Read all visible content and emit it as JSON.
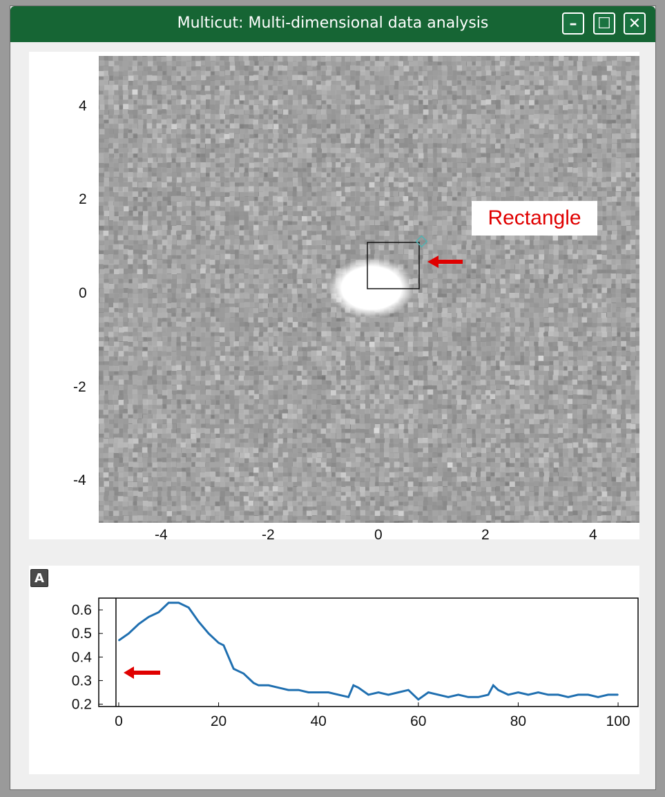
{
  "window": {
    "title": "Multicut: Multi-dimensional data analysis",
    "buttons": {
      "minimize": "–",
      "maximize": "☐",
      "close": "✕"
    }
  },
  "image_plot": {
    "x_ticks": [
      "-4",
      "-2",
      "0",
      "2",
      "4"
    ],
    "y_ticks": [
      "4",
      "2",
      "0",
      "-2",
      "-4"
    ],
    "annotation_label": "Rectangle",
    "colors": {
      "roi_handle": "#4fb3b3",
      "arrow": "#e00000"
    }
  },
  "separator": {
    "icon": "A"
  },
  "chart_data": {
    "type": "line",
    "x_ticks": [
      "0",
      "20",
      "40",
      "60",
      "80",
      "100"
    ],
    "y_ticks": [
      "0.6",
      "0.5",
      "0.4",
      "0.3",
      "0.2"
    ],
    "xlim": [
      -4,
      104
    ],
    "ylim": [
      0.19,
      0.65
    ],
    "series_color": "#1f6fb0",
    "cursor_x": 0,
    "x": [
      0,
      2,
      4,
      6,
      8,
      10,
      12,
      14,
      16,
      18,
      20,
      21,
      22,
      23,
      24,
      25,
      26,
      27,
      28,
      30,
      32,
      34,
      36,
      38,
      40,
      42,
      44,
      46,
      47,
      48,
      50,
      52,
      54,
      56,
      58,
      60,
      62,
      64,
      66,
      68,
      70,
      72,
      74,
      75,
      76,
      78,
      80,
      82,
      84,
      86,
      88,
      90,
      92,
      94,
      96,
      98,
      100
    ],
    "values": [
      0.47,
      0.5,
      0.54,
      0.57,
      0.59,
      0.63,
      0.63,
      0.61,
      0.55,
      0.5,
      0.46,
      0.45,
      0.4,
      0.35,
      0.34,
      0.33,
      0.31,
      0.29,
      0.28,
      0.28,
      0.27,
      0.26,
      0.26,
      0.25,
      0.25,
      0.25,
      0.24,
      0.23,
      0.28,
      0.27,
      0.24,
      0.25,
      0.24,
      0.25,
      0.26,
      0.22,
      0.25,
      0.24,
      0.23,
      0.24,
      0.23,
      0.23,
      0.24,
      0.28,
      0.26,
      0.24,
      0.25,
      0.24,
      0.25,
      0.24,
      0.24,
      0.23,
      0.24,
      0.24,
      0.23,
      0.24,
      0.24
    ]
  }
}
